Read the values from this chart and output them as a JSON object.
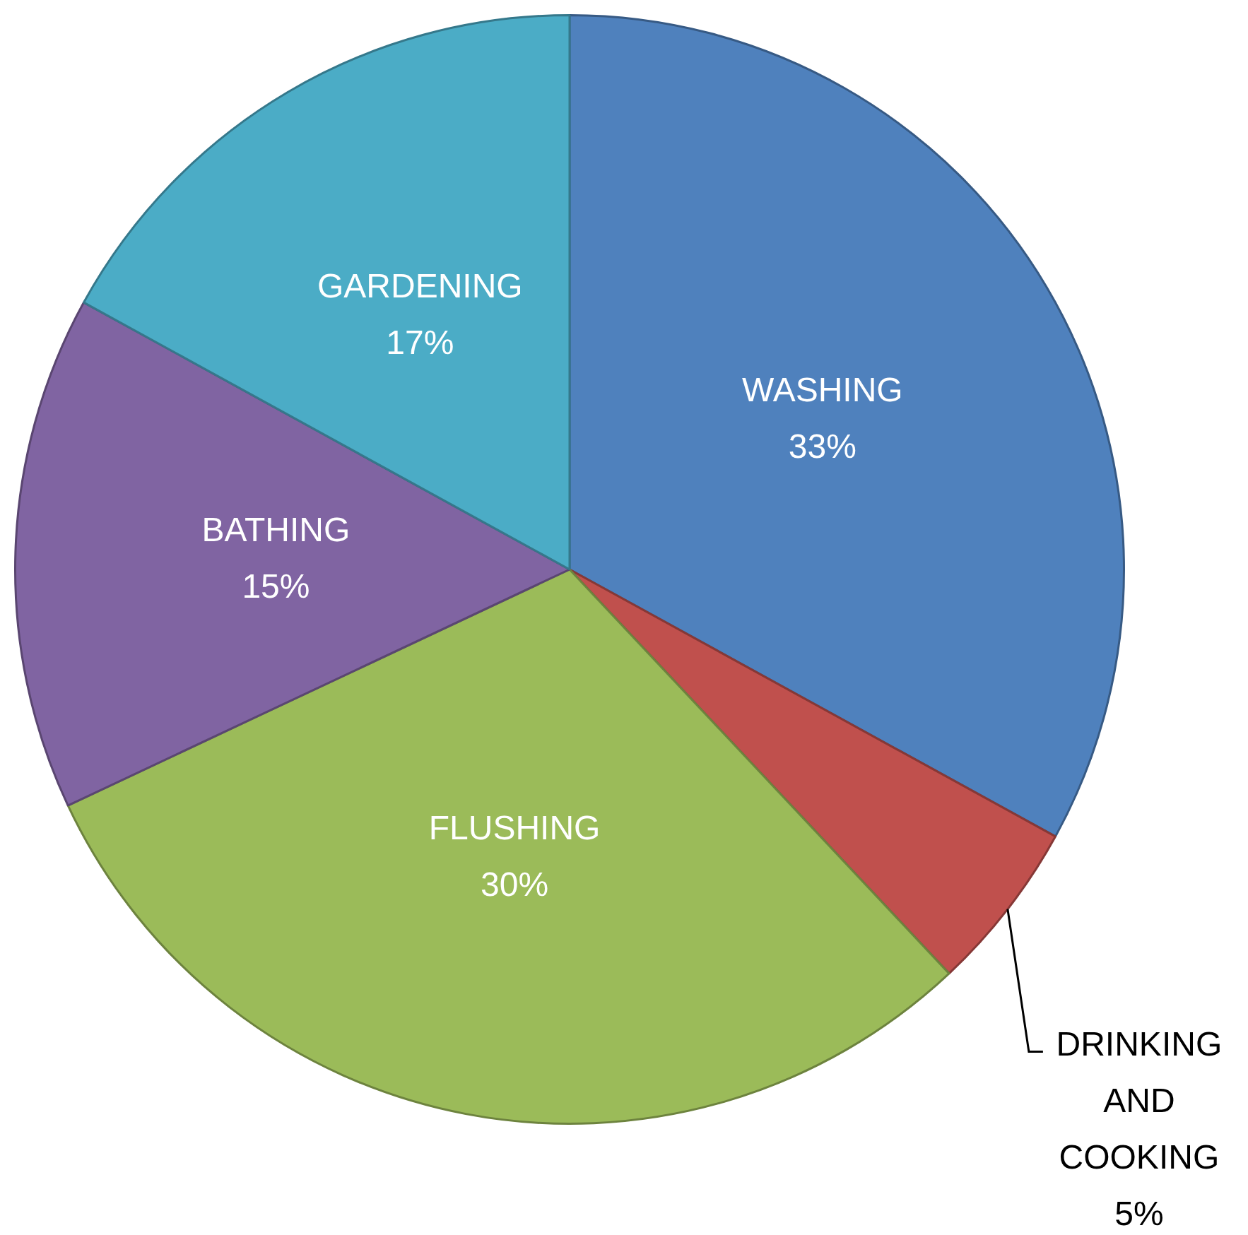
{
  "chart_data": {
    "type": "pie",
    "categories": [
      "WASHING",
      "DRINKING AND COOKING",
      "FLUSHING",
      "BATHING",
      "GARDENING"
    ],
    "values": [
      33,
      5,
      30,
      15,
      17
    ],
    "colors": [
      "#4f81bd",
      "#c0504d",
      "#9bbb59",
      "#8064a2",
      "#4bacc6"
    ],
    "value_labels": [
      "33%",
      "5%",
      "30%",
      "15%",
      "17%"
    ],
    "legend": false
  }
}
